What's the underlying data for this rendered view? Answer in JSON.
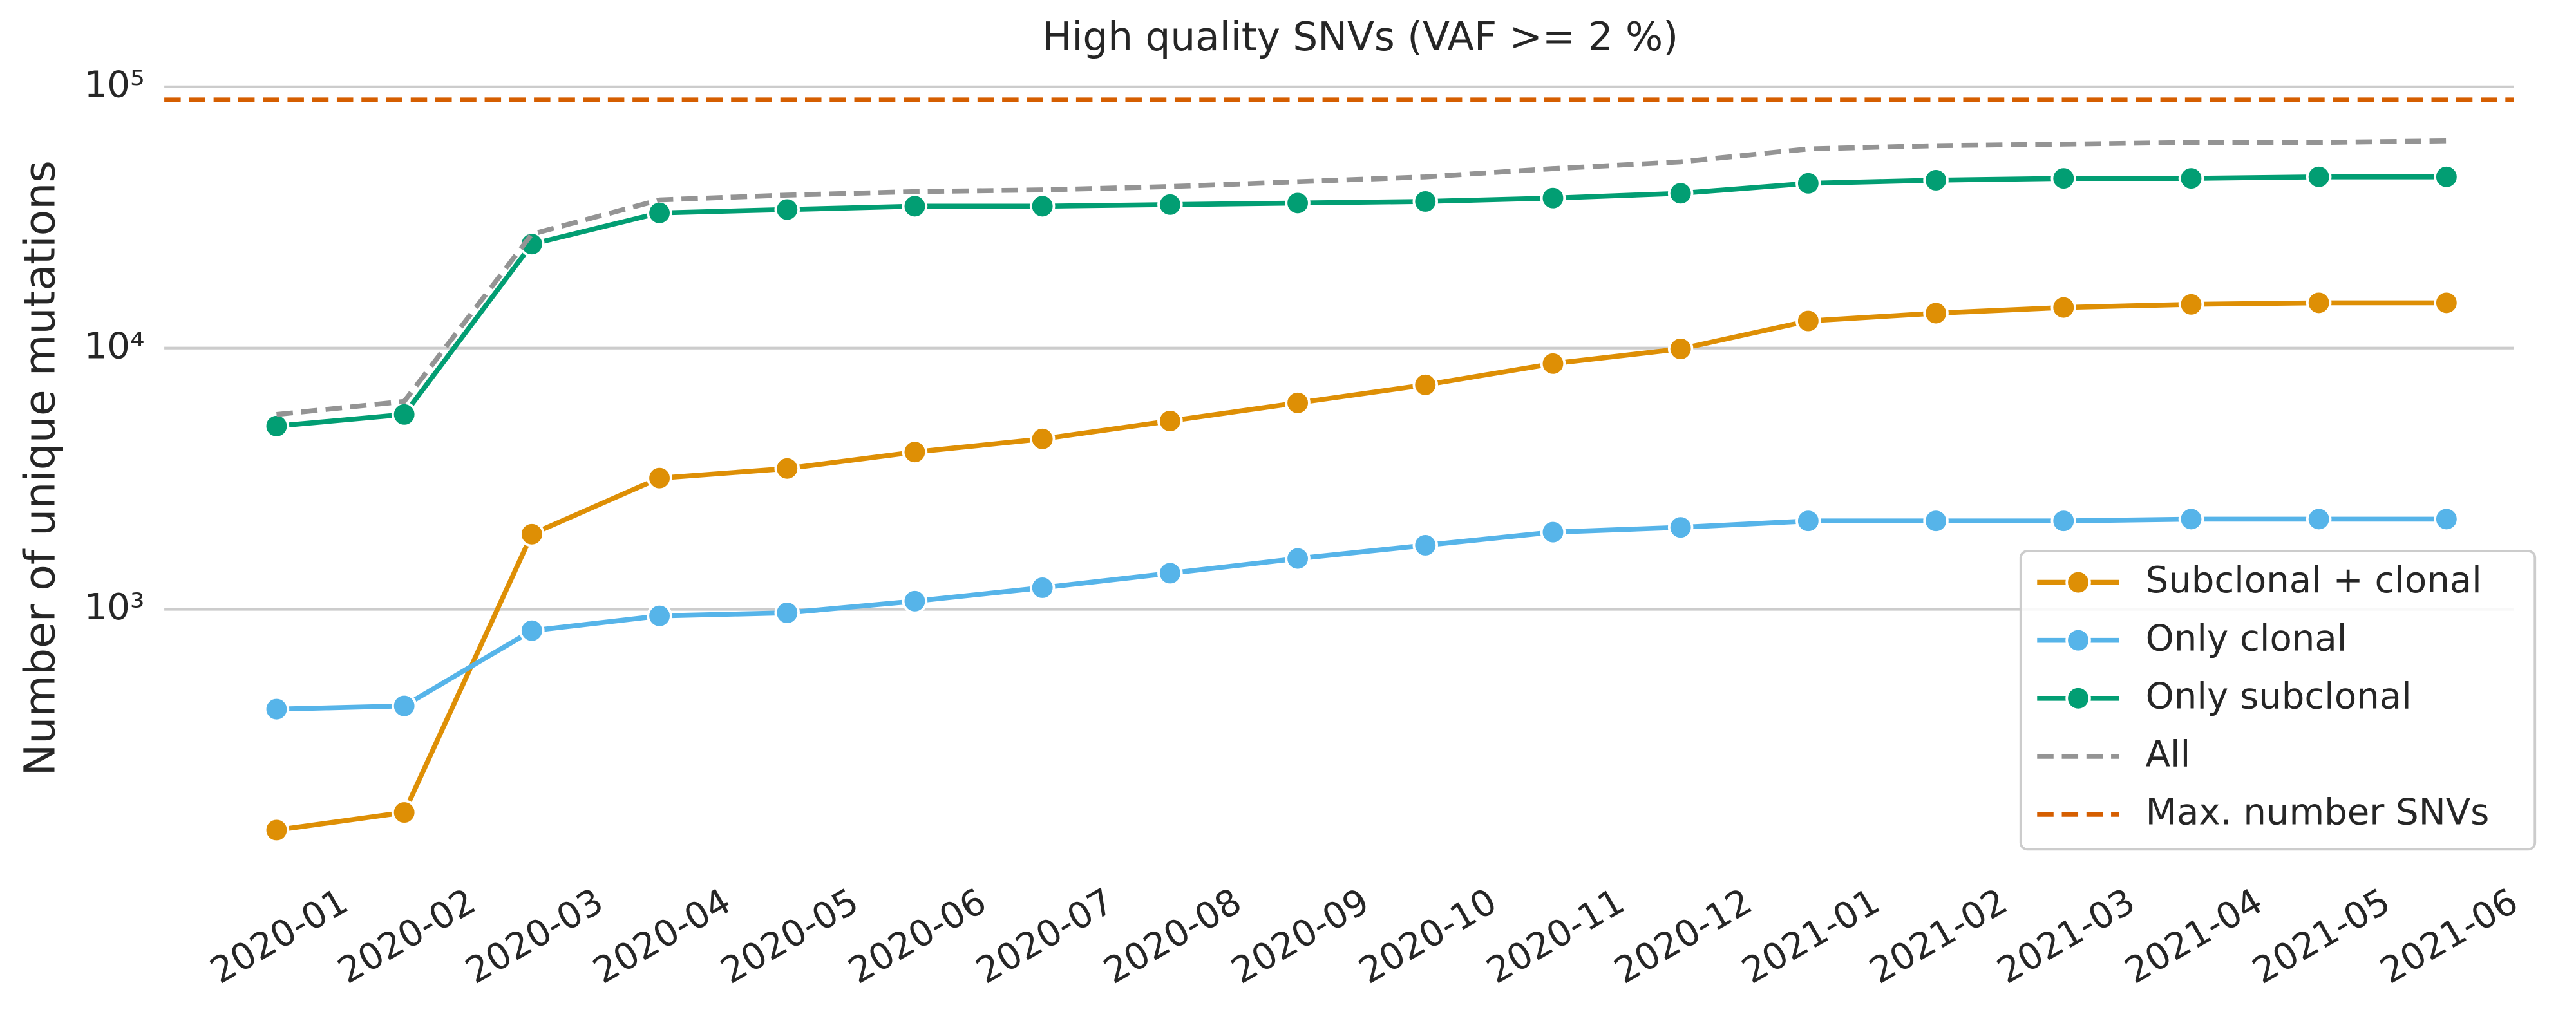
{
  "chart_data": {
    "type": "line",
    "title": "High quality SNVs (VAF >= 2 %)",
    "ylabel": "Number of unique mutations",
    "log_y": true,
    "grid": true,
    "legend_position": "lower right",
    "categories": [
      "2020-01",
      "2020-02",
      "2020-03",
      "2020-04",
      "2020-05",
      "2020-06",
      "2020-07",
      "2020-08",
      "2020-09",
      "2020-10",
      "2020-11",
      "2020-12",
      "2021-01",
      "2021-02",
      "2021-03",
      "2021-04",
      "2021-05",
      "2021-06"
    ],
    "ylim": [
      100,
      112000
    ],
    "yticks": [
      {
        "value": 1000,
        "label": "10³"
      },
      {
        "value": 10000,
        "label": "10⁴"
      },
      {
        "value": 100000,
        "label": "10⁵"
      }
    ],
    "series": [
      {
        "name": "Subclonal + clonal",
        "color": "#de8f05",
        "dashed": false,
        "markers": true,
        "values": [
          143,
          167,
          1940,
          3180,
          3460,
          4000,
          4490,
          5260,
          6170,
          7230,
          8720,
          9930,
          12700,
          13600,
          14300,
          14700,
          14900,
          14900
        ]
      },
      {
        "name": "Only clonal",
        "color": "#56b4e9",
        "dashed": false,
        "markers": true,
        "values": [
          415,
          427,
          829,
          944,
          970,
          1075,
          1210,
          1375,
          1565,
          1760,
          1975,
          2060,
          2180,
          2180,
          2180,
          2215,
          2215,
          2215
        ]
      },
      {
        "name": "Only subclonal",
        "color": "#029e73",
        "dashed": false,
        "markers": true,
        "values": [
          5030,
          5570,
          25000,
          32900,
          33900,
          34900,
          34900,
          35400,
          35900,
          36400,
          37500,
          39100,
          42700,
          43900,
          44600,
          44600,
          45200,
          45200
        ]
      },
      {
        "name": "All",
        "color": "#949494",
        "dashed": true,
        "markers": false,
        "values": [
          5570,
          6250,
          27300,
          36900,
          38500,
          39700,
          40300,
          41500,
          43300,
          45200,
          48600,
          51600,
          57800,
          59500,
          60300,
          61200,
          61200,
          62100
        ]
      }
    ],
    "reference_lines": [
      {
        "name": "Max. number SNVs",
        "color": "#d55e00",
        "dashed": true,
        "value": 89100
      }
    ]
  }
}
